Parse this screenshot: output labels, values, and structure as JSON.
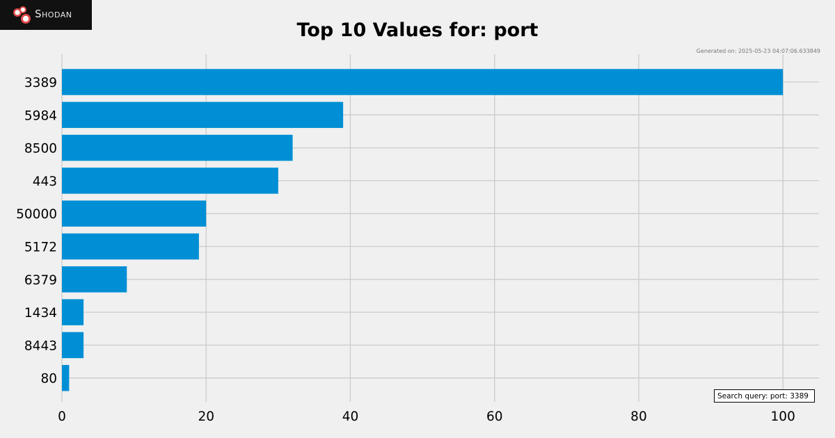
{
  "logo": {
    "text": "Shodan",
    "icon": "shodan-logo-icon"
  },
  "generated_text": "Generated on: 2025-05-23 04:07:06.633849",
  "query_text": "Search query: port: 3389",
  "chart_data": {
    "type": "bar",
    "orientation": "horizontal",
    "title": "Top 10 Values for: port",
    "xlabel": "",
    "ylabel": "",
    "categories": [
      "3389",
      "5984",
      "8500",
      "443",
      "50000",
      "5172",
      "6379",
      "1434",
      "8443",
      "80"
    ],
    "values": [
      100,
      39,
      32,
      30,
      20,
      19,
      9,
      3,
      3,
      1
    ],
    "xlim": [
      0,
      105
    ],
    "xticks": [
      0,
      20,
      40,
      60,
      80,
      100
    ],
    "grid": true,
    "bar_color": "#008fd5"
  }
}
